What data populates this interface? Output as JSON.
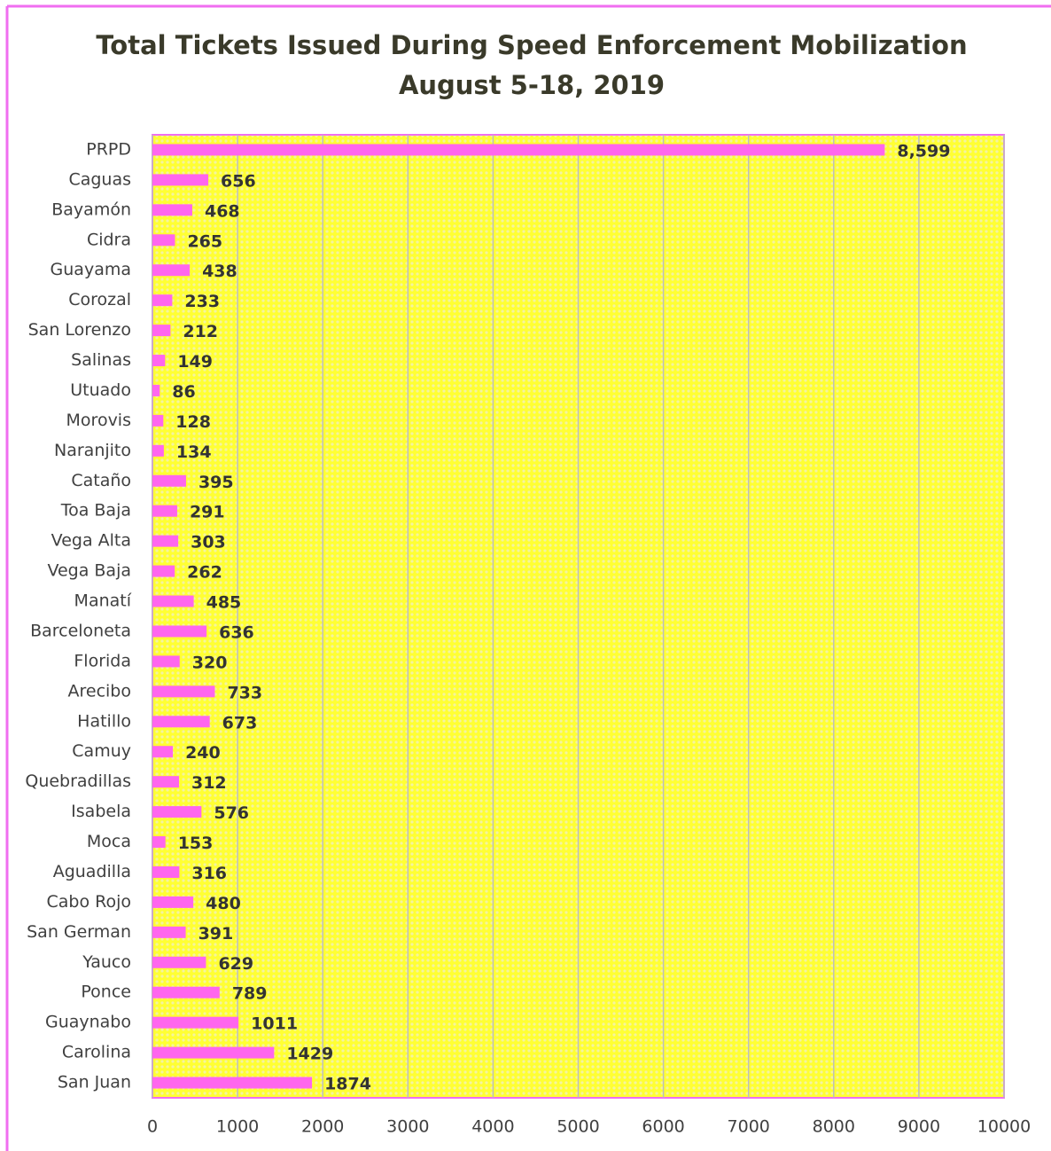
{
  "chart_data": {
    "type": "bar",
    "orientation": "horizontal",
    "title": "Total Tickets Issued During Speed Enforcement Mobilization",
    "subtitle": "August 5-18, 2019",
    "categories": [
      "PRPD",
      "Caguas",
      "Bayamón",
      "Cidra",
      "Guayama",
      "Corozal",
      "San Lorenzo",
      "Salinas",
      "Utuado",
      "Morovis",
      "Naranjito",
      "Cataño",
      "Toa Baja",
      "Vega Alta",
      "Vega Baja",
      "Manatí",
      "Barceloneta",
      "Florida",
      "Arecibo",
      "Hatillo",
      "Camuy",
      "Quebradillas",
      "Isabela",
      "Moca",
      "Aguadilla",
      "Cabo Rojo",
      "San German",
      "Yauco",
      "Ponce",
      "Guaynabo",
      "Carolina",
      "San Juan"
    ],
    "values": [
      8599,
      656,
      468,
      265,
      438,
      233,
      212,
      149,
      86,
      128,
      134,
      395,
      291,
      303,
      262,
      485,
      636,
      320,
      733,
      673,
      240,
      312,
      576,
      153,
      316,
      480,
      391,
      629,
      789,
      1011,
      1429,
      1874
    ],
    "value_labels": [
      "8,599",
      "656",
      "468",
      "265",
      "438",
      "233",
      "212",
      "149",
      "86",
      "128",
      "134",
      "395",
      "291",
      "303",
      "262",
      "485",
      "636",
      "320",
      "733",
      "673",
      "240",
      "312",
      "576",
      "153",
      "316",
      "480",
      "391",
      "629",
      "789",
      "1011",
      "1429",
      "1874"
    ],
    "color": "#ff66ee",
    "xlim": [
      0,
      10000
    ],
    "xticks": [
      0,
      1000,
      2000,
      3000,
      4000,
      5000,
      6000,
      7000,
      8000,
      9000,
      10000
    ],
    "grid": true
  }
}
